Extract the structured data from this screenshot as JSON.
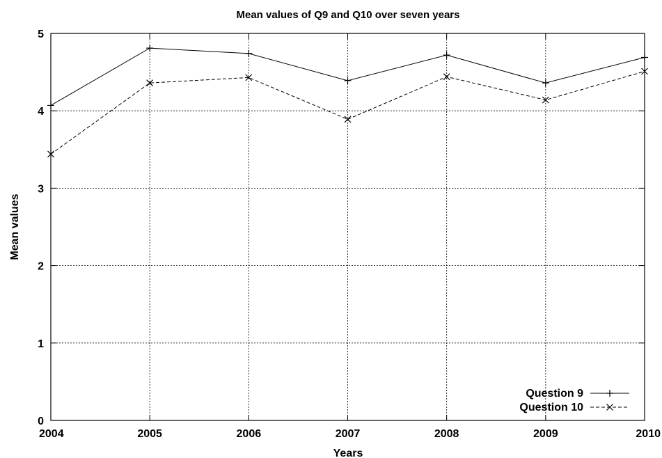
{
  "chart_data": {
    "type": "line",
    "title": "Mean values of Q9 and Q10 over seven years",
    "xlabel": "Years",
    "ylabel": "Mean values",
    "x": [
      "2004",
      "2005",
      "2006",
      "2007",
      "2008",
      "2009",
      "2010"
    ],
    "ylim": [
      0,
      5
    ],
    "yticks": [
      "0",
      "1",
      "2",
      "3",
      "4",
      "5"
    ],
    "grid": true,
    "legend_position": "bottom-right",
    "series": [
      {
        "name": "Question 9",
        "marker": "plus",
        "line": "solid",
        "color": "#000000",
        "values": [
          4.07,
          4.81,
          4.74,
          4.39,
          4.72,
          4.36,
          4.69
        ]
      },
      {
        "name": "Question 10",
        "marker": "cross",
        "line": "dashed",
        "color": "#000000",
        "values": [
          3.44,
          4.36,
          4.43,
          3.89,
          4.44,
          4.14,
          4.51
        ]
      }
    ]
  }
}
